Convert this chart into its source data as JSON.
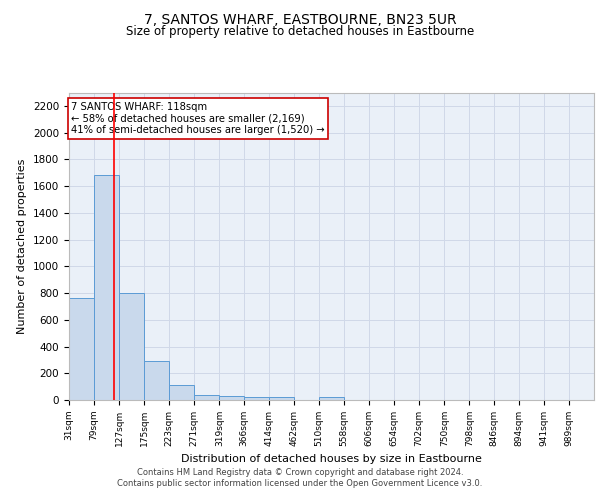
{
  "title": "7, SANTOS WHARF, EASTBOURNE, BN23 5UR",
  "subtitle": "Size of property relative to detached houses in Eastbourne",
  "xlabel": "Distribution of detached houses by size in Eastbourne",
  "ylabel": "Number of detached properties",
  "bin_labels": [
    "31sqm",
    "79sqm",
    "127sqm",
    "175sqm",
    "223sqm",
    "271sqm",
    "319sqm",
    "366sqm",
    "414sqm",
    "462sqm",
    "510sqm",
    "558sqm",
    "606sqm",
    "654sqm",
    "702sqm",
    "750sqm",
    "798sqm",
    "846sqm",
    "894sqm",
    "941sqm",
    "989sqm"
  ],
  "bin_edges": [
    31,
    79,
    127,
    175,
    223,
    271,
    319,
    366,
    414,
    462,
    510,
    558,
    606,
    654,
    702,
    750,
    798,
    846,
    894,
    941,
    989
  ],
  "bar_heights": [
    760,
    1680,
    800,
    295,
    110,
    40,
    30,
    25,
    20,
    0,
    20,
    0,
    0,
    0,
    0,
    0,
    0,
    0,
    0,
    0
  ],
  "bar_color": "#c9d9ec",
  "bar_edge_color": "#5b9bd5",
  "grid_color": "#d0d8e8",
  "bg_color": "#eaf0f8",
  "red_line_x": 118,
  "annotation_text": "7 SANTOS WHARF: 118sqm\n← 58% of detached houses are smaller (2,169)\n41% of semi-detached houses are larger (1,520) →",
  "annotation_box_color": "#cc0000",
  "ylim": [
    0,
    2300
  ],
  "yticks": [
    0,
    200,
    400,
    600,
    800,
    1000,
    1200,
    1400,
    1600,
    1800,
    2000,
    2200
  ],
  "footer_text": "Contains HM Land Registry data © Crown copyright and database right 2024.\nContains public sector information licensed under the Open Government Licence v3.0."
}
